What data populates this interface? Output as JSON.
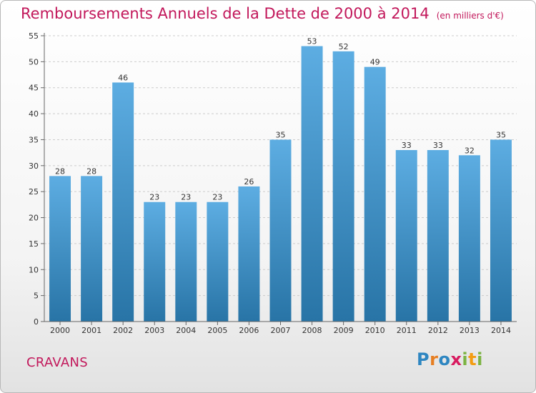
{
  "title": "Remboursements Annuels de la Dette de 2000 à 2014",
  "unit": "(en milliers d'€)",
  "location": "CRAVANS",
  "logo": {
    "text": "Proxiti",
    "letters": [
      {
        "ch": "P",
        "color": "#2e86c1"
      },
      {
        "ch": "r",
        "color": "#e67e22"
      },
      {
        "ch": "o",
        "color": "#2e86c1"
      },
      {
        "ch": "x",
        "color": "#d81b60"
      },
      {
        "ch": "i",
        "color": "#7cb342"
      },
      {
        "ch": "t",
        "color": "#f39c12"
      },
      {
        "ch": "i",
        "color": "#7cb342"
      }
    ]
  },
  "colors": {
    "title": "#c2185b",
    "bar_top": "#5dade2",
    "bar_bottom": "#2874a6",
    "grid": "#cccccc",
    "axis": "#666666"
  },
  "chart_data": {
    "type": "bar",
    "title": "Remboursements Annuels de la Dette de 2000 à 2014",
    "xlabel": "",
    "ylabel": "",
    "categories": [
      "2000",
      "2001",
      "2002",
      "2003",
      "2004",
      "2005",
      "2006",
      "2007",
      "2008",
      "2009",
      "2010",
      "2011",
      "2012",
      "2013",
      "2014"
    ],
    "values": [
      28,
      28,
      46,
      23,
      23,
      23,
      26,
      35,
      53,
      52,
      49,
      33,
      33,
      32,
      35
    ],
    "ylim": [
      0,
      55
    ],
    "yticks": [
      0,
      5,
      10,
      15,
      20,
      25,
      30,
      35,
      40,
      45,
      50,
      55
    ],
    "grid": "horizontal dashed",
    "legend": "none"
  }
}
